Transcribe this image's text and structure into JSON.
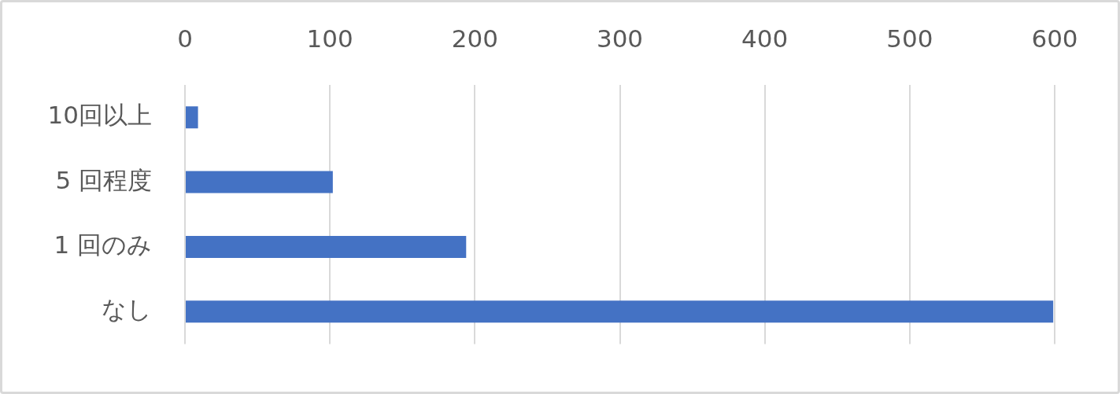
{
  "chart_data": {
    "type": "bar",
    "orientation": "horizontal",
    "categories": [
      "10回以上",
      "5 回程度",
      "1 回のみ",
      "なし"
    ],
    "values": [
      9,
      102,
      194,
      599
    ],
    "color": "#4472c4",
    "xlim": [
      0,
      600
    ],
    "xticks": [
      0,
      100,
      200,
      300,
      400,
      500,
      600
    ],
    "grid": "x"
  }
}
